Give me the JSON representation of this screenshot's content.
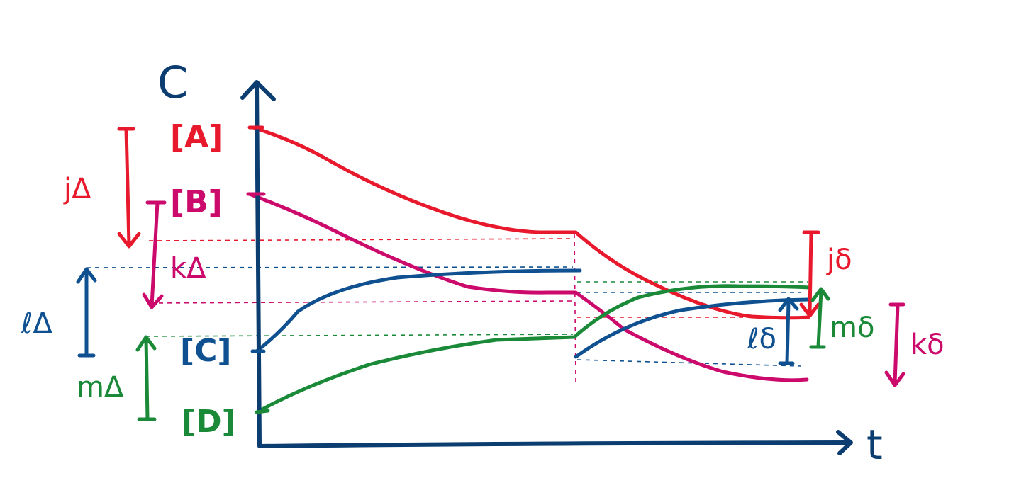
{
  "axes": {
    "y_label": "C",
    "x_label": "t"
  },
  "colors": {
    "A": "#e8192c",
    "B": "#cc0a6c",
    "C": "#0f5190",
    "D": "#1a8a38",
    "axis": "#0c3d70"
  },
  "initial_concentrations": [
    {
      "id": "A",
      "label": "[A]"
    },
    {
      "id": "B",
      "label": "[B]"
    },
    {
      "id": "C",
      "label": "[C]"
    },
    {
      "id": "D",
      "label": "[D]"
    }
  ],
  "changes_to_equilibrium": {
    "A": "jΔ",
    "B": "kΔ",
    "C": "ℓΔ",
    "D": "mΔ"
  },
  "changes_after_disturbance": {
    "A": "jδ",
    "B": "kδ",
    "C": "ℓδ",
    "D": "mδ"
  }
}
